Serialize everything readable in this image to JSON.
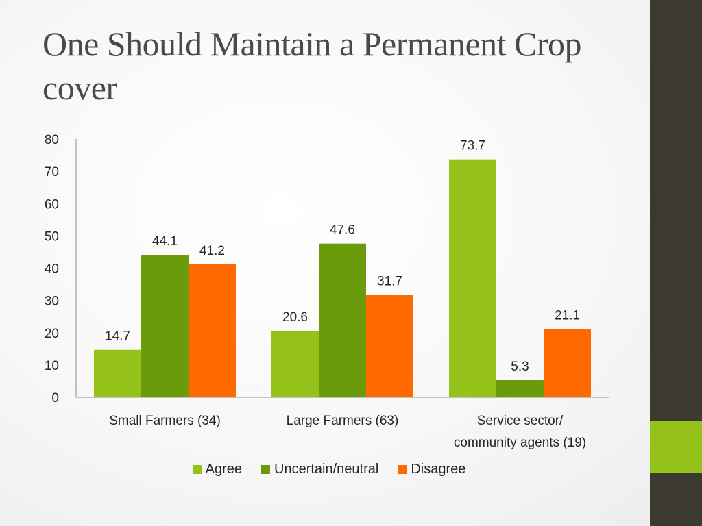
{
  "slide": {
    "title": "One Should Maintain a Permanent Crop cover"
  },
  "chart_data": {
    "type": "bar",
    "categories": [
      [
        "Small Farmers (34)"
      ],
      [
        "Large Farmers (63)"
      ],
      [
        "Service sector/",
        "community agents (19)"
      ]
    ],
    "series": [
      {
        "name": "Agree",
        "color": "#94c11a",
        "values": [
          14.7,
          20.6,
          73.7
        ]
      },
      {
        "name": "Uncertain/neutral",
        "color": "#6b9a0b",
        "values": [
          44.1,
          47.6,
          5.3
        ]
      },
      {
        "name": "Disagree",
        "color": "#ff6a00",
        "values": [
          41.2,
          31.7,
          21.1
        ]
      }
    ],
    "ylim": [
      0,
      80
    ],
    "yticks": [
      0,
      10,
      20,
      30,
      40,
      50,
      60,
      70,
      80
    ],
    "legend_position": "bottom",
    "grid": false
  }
}
